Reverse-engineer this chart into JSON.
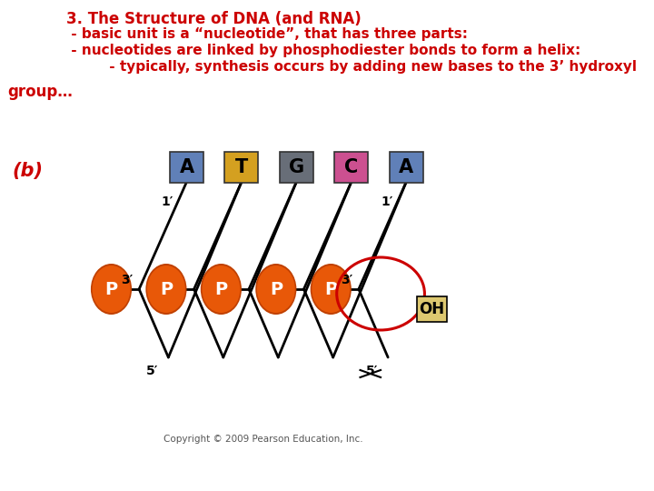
{
  "title_lines": [
    "3. The Structure of DNA (and RNA)",
    " - basic unit is a “nucleotide”, that has three parts:",
    " - nucleotides are linked by phosphodiester bonds to form a helix:",
    "         - typically, synthesis occurs by adding new bases to the 3’ hydroxyl"
  ],
  "group_text": "group…",
  "b_label": "(b)",
  "bases": [
    "A",
    "T",
    "G",
    "C",
    "A"
  ],
  "base_colors": [
    "#6080b8",
    "#d4a020",
    "#686e78",
    "#cc5090",
    "#6080b8"
  ],
  "p_color": "#e85808",
  "p_label": "P",
  "oh_label": "OH",
  "copyright": "Copyright © 2009 Pearson Education, Inc.",
  "text_color": "#cc0000",
  "black": "#000000",
  "white": "#ffffff",
  "bg_color": "#ffffff"
}
